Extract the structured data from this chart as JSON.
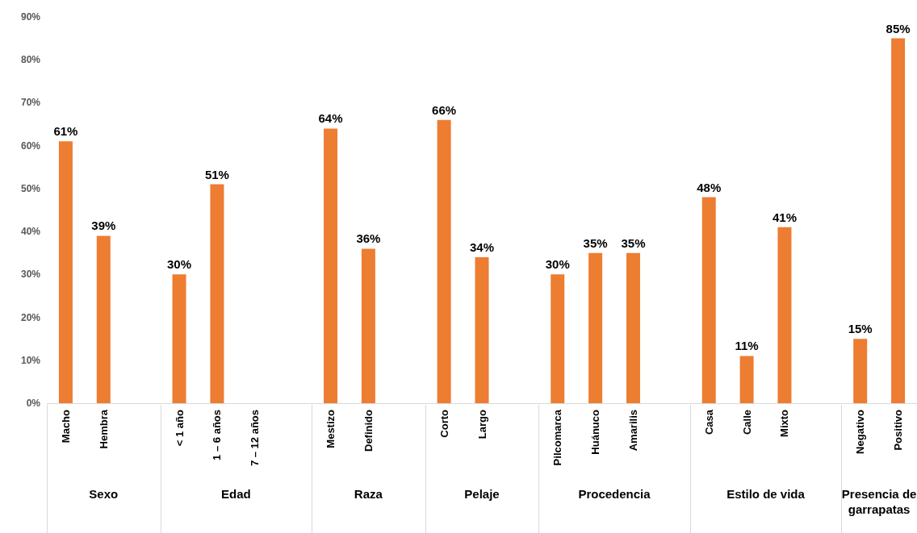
{
  "chart_data": {
    "type": "bar",
    "categories": [
      "Macho",
      "Hembra",
      null,
      "< 1 año",
      "1 – 6 años",
      "7 – 12 años",
      null,
      "Mestizo",
      "Definido",
      null,
      "Corto",
      "Largo",
      null,
      "Pilcomarca",
      "Huánuco",
      "Amarilis",
      null,
      "Casa",
      "Calle",
      "Mixto",
      null,
      "Negativo",
      "Positivo"
    ],
    "values": [
      61,
      39,
      null,
      30,
      51,
      0,
      null,
      64,
      36,
      null,
      66,
      34,
      null,
      30,
      35,
      35,
      null,
      48,
      11,
      41,
      null,
      15,
      85
    ],
    "value_labels": [
      "61%",
      "39%",
      null,
      "30%",
      "51%",
      null,
      null,
      "64%",
      "36%",
      null,
      "66%",
      "34%",
      null,
      "30%",
      "35%",
      "35%",
      null,
      "48%",
      "11%",
      "41%",
      null,
      "15%",
      "85%"
    ],
    "color": "#ed7d31",
    "ylim": [
      0,
      90
    ],
    "yticks": [
      {
        "value": 0,
        "label": "0%"
      },
      {
        "value": 10,
        "label": "10%"
      },
      {
        "value": 20,
        "label": "20%"
      },
      {
        "value": 30,
        "label": "30%"
      },
      {
        "value": 40,
        "label": "40%"
      },
      {
        "value": 50,
        "label": "50%"
      },
      {
        "value": 60,
        "label": "60%"
      },
      {
        "value": 70,
        "label": "70%"
      },
      {
        "value": 80,
        "label": "80%"
      },
      {
        "value": 90,
        "label": "90%"
      }
    ],
    "annotations": [
      "Sexo",
      "Edad",
      "Raza",
      "Pelaje",
      "Procedencia",
      "Estilo de vida",
      "Presencia de garrapatas"
    ]
  }
}
